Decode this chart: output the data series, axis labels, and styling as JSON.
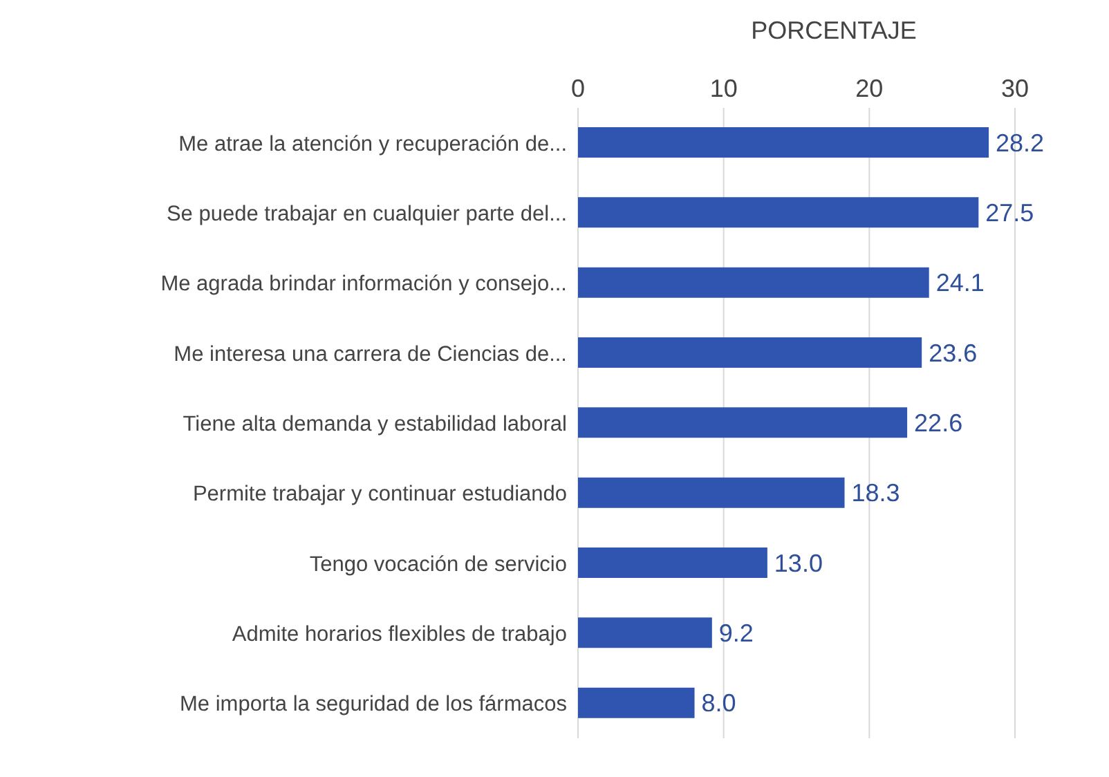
{
  "chart_data": {
    "type": "bar",
    "orientation": "horizontal",
    "xlabel": "PORCENTAJE",
    "categories": [
      "Me atrae la atención y recuperación de...",
      "Se puede trabajar en cualquier parte del...",
      "Me agrada brindar información y consejo...",
      "Me interesa una carrera de Ciencias de...",
      "Tiene alta demanda y estabilidad laboral",
      "Permite trabajar y continuar estudiando",
      "Tengo vocación de servicio",
      "Admite horarios flexibles de trabajo",
      "Me importa la seguridad de los fármacos"
    ],
    "values": [
      28.2,
      27.5,
      24.1,
      23.6,
      22.6,
      18.3,
      13.0,
      9.2,
      8.0
    ],
    "value_labels": [
      "28.2",
      "27.5",
      "24.1",
      "23.6",
      "22.6",
      "18.3",
      "13.0",
      "9.2",
      "8.0"
    ],
    "color": "#2f55b0",
    "xlim": [
      0,
      30
    ],
    "xticks": [
      0,
      10,
      20,
      30
    ],
    "grid": "x"
  }
}
